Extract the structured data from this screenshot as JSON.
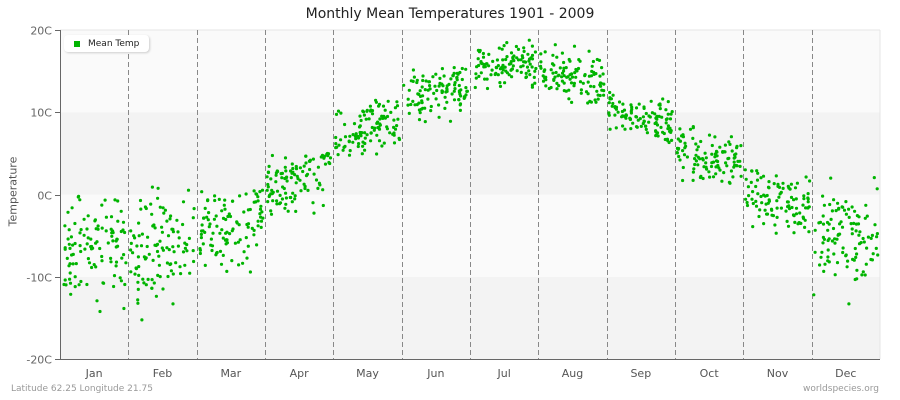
{
  "title": "Monthly Mean Temperatures 1901 - 2009",
  "footer": {
    "location": "Latitude 62.25 Longitude 21.75",
    "source": "worldspecies.org"
  },
  "colors": {
    "point": "#00b400",
    "band_light": "#fafafa",
    "band_dark": "#f3f3f3",
    "axis": "#666666",
    "divider": "#888888"
  },
  "chart_data": {
    "type": "scatter",
    "title": "Monthly Mean Temperatures 1901 - 2009",
    "xlabel": "",
    "ylabel": "Temperature",
    "ylim": [
      -20,
      20
    ],
    "yticks": [
      "-20C",
      "-10C",
      "0C",
      "10C",
      "20C"
    ],
    "ytick_values": [
      -20,
      -10,
      0,
      10,
      20
    ],
    "categories": [
      "Jan",
      "Feb",
      "Mar",
      "Apr",
      "May",
      "Jun",
      "Jul",
      "Aug",
      "Sep",
      "Oct",
      "Nov",
      "Dec"
    ],
    "legend": [
      "Mean Temp"
    ],
    "legend_position": "top-left",
    "grid": "alternating horizontal bands, dashed vertical month dividers",
    "years": [
      1901,
      2009
    ],
    "points_per_month": 109,
    "series": [
      {
        "name": "Mean Temp",
        "monthly_mean": [
          -6.5,
          -6.8,
          -3.8,
          2.0,
          8.2,
          12.8,
          15.8,
          14.4,
          9.6,
          4.3,
          -0.8,
          -4.8
        ],
        "monthly_min": [
          -17.7,
          -17.3,
          -10.3,
          -2.5,
          3.8,
          8.8,
          12.8,
          10.9,
          6.3,
          1.2,
          -4.8,
          -13.4
        ],
        "monthly_max": [
          -0.2,
          1.0,
          0.6,
          5.0,
          11.8,
          16.9,
          19.6,
          18.6,
          13.3,
          8.4,
          3.3,
          2.4
        ],
        "monthly_spread": [
          3.6,
          3.8,
          2.6,
          1.7,
          1.6,
          1.6,
          1.4,
          1.5,
          1.4,
          1.6,
          1.8,
          3.1
        ]
      }
    ]
  }
}
